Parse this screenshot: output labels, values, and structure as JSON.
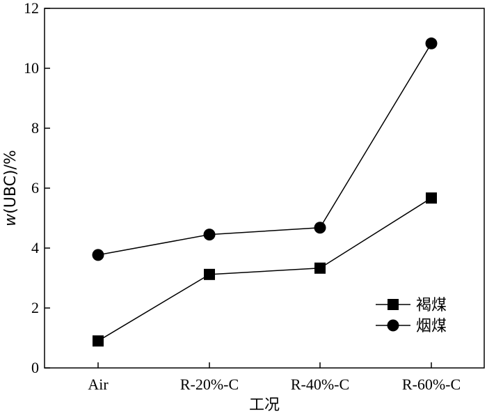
{
  "chart_data": {
    "type": "line",
    "categories": [
      "Air",
      "R-20%-C",
      "R-40%-C",
      "R-60%-C"
    ],
    "series": [
      {
        "name": "褐煤",
        "marker": "square",
        "values": [
          0.9,
          3.12,
          3.33,
          5.67
        ]
      },
      {
        "name": "烟煤",
        "marker": "circle",
        "values": [
          3.77,
          4.45,
          4.68,
          10.83
        ]
      }
    ],
    "xlabel": "工况",
    "ylabel_italic": "w",
    "ylabel_rest": "(UBC)/%",
    "ylim": [
      0,
      12
    ],
    "yticks": [
      "0",
      "2",
      "4",
      "6",
      "8",
      "10",
      "12"
    ],
    "grid": false,
    "legend_position": "lower-right",
    "colors": {
      "line": "#000000",
      "marker": "#000000",
      "background": "#ffffff"
    }
  }
}
